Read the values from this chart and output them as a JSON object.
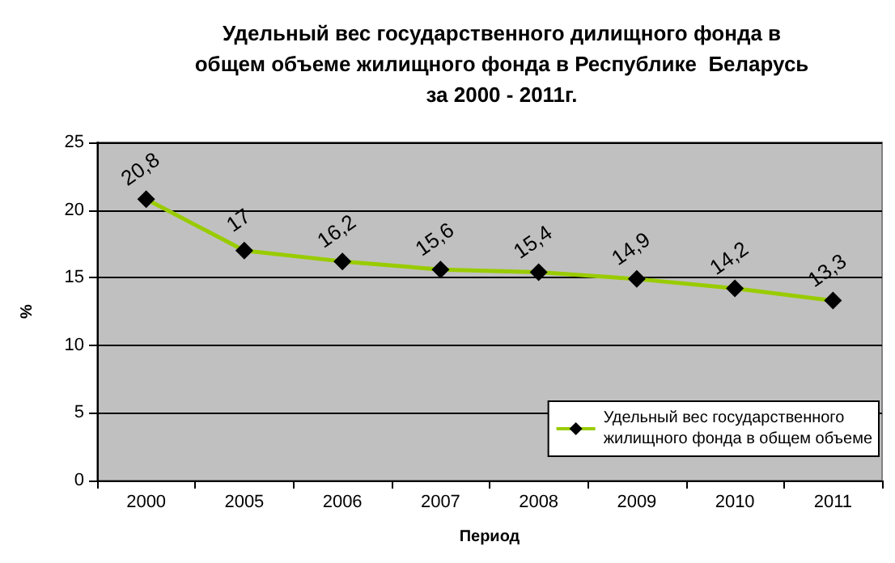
{
  "chart_data": {
    "type": "line",
    "title": "Удельный вес государственного дилищного фонда в\nобщем объеме жилищного фонда в Республике  Беларусь\nза 2000 - 2011г.",
    "xlabel": "Период",
    "ylabel": "%",
    "categories": [
      "2000",
      "2005",
      "2006",
      "2007",
      "2008",
      "2009",
      "2010",
      "2011"
    ],
    "series": [
      {
        "name": "Удельный вес государственного\nжилищного фонда в общем объеме",
        "color": "#99cc00",
        "values": [
          20.8,
          17,
          16.2,
          15.6,
          15.4,
          14.9,
          14.2,
          13.3
        ],
        "value_labels": [
          "20,8",
          "17",
          "16,2",
          "15,6",
          "15,4",
          "14,9",
          "14,2",
          "13,3"
        ]
      }
    ],
    "ylim": [
      0,
      25
    ],
    "yticks": [
      0,
      5,
      10,
      15,
      20,
      25
    ],
    "grid": "y",
    "legend": "bottom right",
    "marker": "diamond"
  }
}
